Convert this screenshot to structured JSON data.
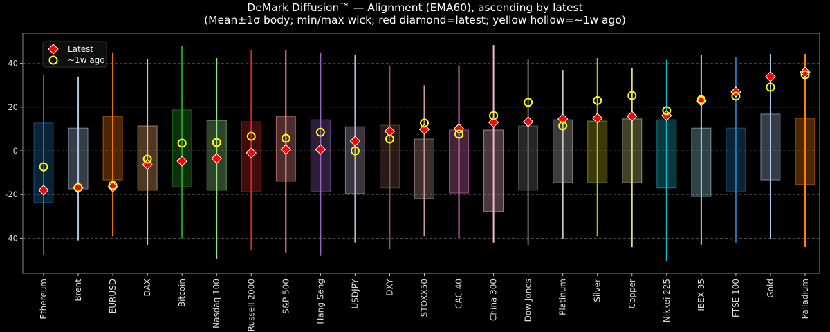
{
  "chart_data": {
    "type": "box-range",
    "title": "DeMark Diffusion™ — Alignment (EMA60), ascending by latest",
    "subtitle": "(Mean±1σ body; min/max wick; red diamond=latest; yellow hollow=~1w ago)",
    "xlabel": "",
    "ylabel": "",
    "ylim": [
      -56,
      53.8
    ],
    "yticks": [
      -40,
      -20,
      0,
      20,
      40
    ],
    "grid": true,
    "legend": {
      "position": "top-left",
      "entries": [
        "Latest",
        "~1w ago"
      ]
    },
    "marker_colors": {
      "latest": "#ff0000",
      "week_ago": "#ffff00"
    },
    "categories": [
      "Ethereum",
      "Brent",
      "EURUSD",
      "DAX",
      "Bitcoin",
      "Nasdaq 100",
      "Russell 2000",
      "S&P 500",
      "Hang Seng",
      "USDJPY",
      "DXY",
      "STOXX50",
      "CAC 40",
      "China 300",
      "Dow Jones",
      "Platinum",
      "Silver",
      "Copper",
      "Nikkei 225",
      "IBEX 35",
      "FTSE 100",
      "Gold",
      "Palladium"
    ],
    "colors": [
      "#1f77b4",
      "#aec7e8",
      "#ff7f0e",
      "#ffbb78",
      "#2ca02c",
      "#98df8a",
      "#d62728",
      "#ff9896",
      "#9467bd",
      "#c5b0d5",
      "#8c564b",
      "#c49c94",
      "#e377c2",
      "#f7b6d2",
      "#7f7f7f",
      "#c7c7c7",
      "#bcbd22",
      "#dbdb8d",
      "#17becf",
      "#9edae5",
      "#1f77b4",
      "#aec7e8",
      "#ff7f0e"
    ],
    "max": [
      34.8,
      33.9,
      45,
      42,
      48,
      42.4,
      45.9,
      45.9,
      45,
      43.7,
      39,
      30,
      39,
      48.4,
      42,
      37,
      42.4,
      37.7,
      41.5,
      43.7,
      42.7,
      44.3,
      44.3
    ],
    "min": [
      -47.5,
      -41,
      -39,
      -43,
      -40,
      -49.4,
      -45.6,
      -46.8,
      -48,
      -42,
      -45,
      -39,
      -40,
      -42,
      -43,
      -40.5,
      -39,
      -44,
      -50.6,
      -43,
      -42,
      -40.5,
      -44
    ],
    "body_top": [
      12.7,
      10.4,
      15.8,
      11.4,
      18.7,
      13.9,
      13.3,
      15.8,
      14.2,
      11,
      11.7,
      5.4,
      9.5,
      9.5,
      11.4,
      14.2,
      13.6,
      14.6,
      14.2,
      10.4,
      10.4,
      16.8,
      14.9
    ],
    "body_bottom": [
      -23.7,
      -17.4,
      -13.3,
      -18,
      -16.5,
      -18,
      -18.7,
      -13.9,
      -18.7,
      -19.6,
      -17,
      -21.8,
      -19.3,
      -27.8,
      -18,
      -14.6,
      -14.6,
      -14.6,
      -17,
      -20.9,
      -18.7,
      -13.3,
      -15.5
    ],
    "latest": [
      -18,
      -16.8,
      -16.5,
      -6.3,
      -4.7,
      -3.5,
      -1,
      0.6,
      0.6,
      4.4,
      8.9,
      9.8,
      10.1,
      13,
      13.3,
      14.6,
      14.9,
      15.8,
      16.1,
      22.8,
      26.9,
      33.9,
      36
    ],
    "week_ago": [
      -7.3,
      -16.8,
      -15.8,
      -3.8,
      3.5,
      3.8,
      6.6,
      5.7,
      8.5,
      0,
      5.4,
      12.7,
      7.6,
      16.1,
      22.2,
      11.4,
      23,
      25.3,
      18.4,
      23.4,
      25,
      29.1,
      34.8
    ]
  }
}
